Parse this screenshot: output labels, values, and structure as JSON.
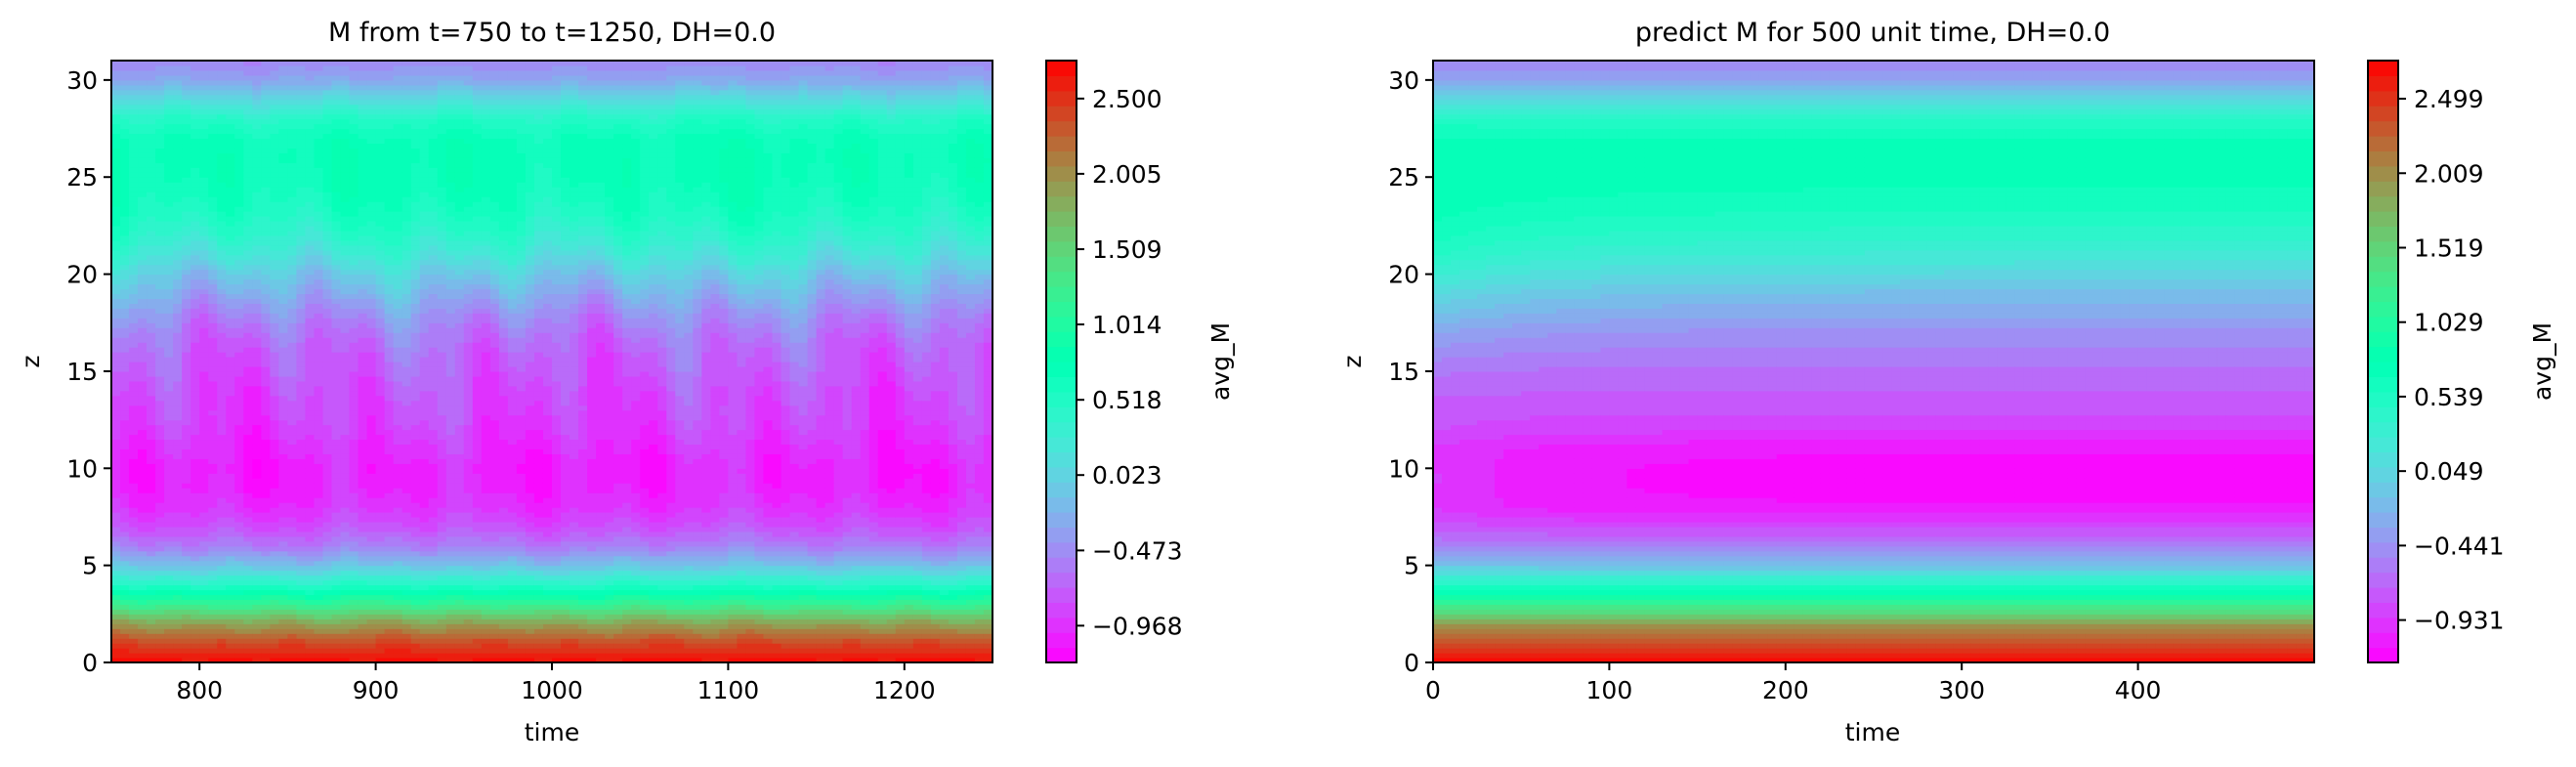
{
  "chart_data": [
    {
      "type": "heatmap",
      "title": "M from t=750 to t=1250, DH=0.0",
      "xlabel": "time",
      "ylabel": "z",
      "xlim": [
        750,
        1250
      ],
      "ylim": [
        0,
        31
      ],
      "xticks": [
        800,
        900,
        1000,
        1100,
        1200
      ],
      "yticks": [
        0,
        5,
        10,
        15,
        20,
        25,
        30
      ],
      "colorbar": {
        "label": "avg_M",
        "range": [
          -1.21,
          2.75
        ],
        "ticks": [
          -0.968,
          -0.473,
          0.023,
          0.518,
          1.014,
          1.509,
          2.005,
          2.5
        ],
        "tick_labels": [
          "−0.968",
          "−0.473",
          "0.023",
          "0.518",
          "1.014",
          "1.509",
          "2.005",
          "2.500"
        ]
      },
      "colormap": "rainbow",
      "grid": false,
      "z_profile": {
        "z": [
          0,
          1,
          2,
          3,
          4,
          5,
          6,
          7,
          8,
          9,
          10,
          11,
          12,
          13,
          14,
          15,
          16,
          17,
          18,
          19,
          20,
          21,
          22,
          23,
          24,
          25,
          26,
          27,
          28,
          29,
          30,
          31
        ],
        "avg_M": [
          2.7,
          2.4,
          1.9,
          1.2,
          0.5,
          -0.1,
          -0.55,
          -0.8,
          -0.95,
          -1.03,
          -1.05,
          -0.98,
          -0.9,
          -0.85,
          -0.82,
          -0.75,
          -0.7,
          -0.6,
          -0.45,
          -0.25,
          -0.05,
          0.2,
          0.4,
          0.55,
          0.65,
          0.7,
          0.72,
          0.68,
          0.5,
          0.1,
          -0.3,
          -0.5
        ]
      },
      "time_variation": "fluctuating"
    },
    {
      "type": "heatmap",
      "title": "predict M for 500 unit time, DH=0.0",
      "xlabel": "time",
      "ylabel": "z",
      "xlim": [
        0,
        500
      ],
      "ylim": [
        0,
        31
      ],
      "xticks": [
        0,
        100,
        200,
        300,
        400
      ],
      "yticks": [
        0,
        5,
        10,
        15,
        20,
        25,
        30
      ],
      "colorbar": {
        "label": "avg_M",
        "range": [
          -1.21,
          2.75
        ],
        "ticks": [
          -0.931,
          -0.441,
          0.049,
          0.539,
          1.029,
          1.519,
          2.009,
          2.499
        ],
        "tick_labels": [
          "−0.931",
          "−0.441",
          "0.049",
          "0.539",
          "1.029",
          "1.519",
          "2.009",
          "2.499"
        ]
      },
      "colormap": "rainbow",
      "grid": false,
      "z_profile": {
        "z": [
          0,
          1,
          2,
          3,
          4,
          5,
          6,
          7,
          8,
          9,
          10,
          11,
          12,
          13,
          14,
          15,
          16,
          17,
          18,
          19,
          20,
          21,
          22,
          23,
          24,
          25,
          26,
          27,
          28,
          29,
          30,
          31
        ],
        "avg_M": [
          2.7,
          2.4,
          1.9,
          1.2,
          0.5,
          -0.1,
          -0.55,
          -0.85,
          -1.1,
          -1.15,
          -1.15,
          -1.1,
          -0.9,
          -0.8,
          -0.72,
          -0.65,
          -0.55,
          -0.45,
          -0.3,
          -0.15,
          0.05,
          0.25,
          0.42,
          0.55,
          0.65,
          0.7,
          0.72,
          0.68,
          0.5,
          0.1,
          -0.3,
          -0.5
        ]
      },
      "time_variation": "steady"
    }
  ]
}
